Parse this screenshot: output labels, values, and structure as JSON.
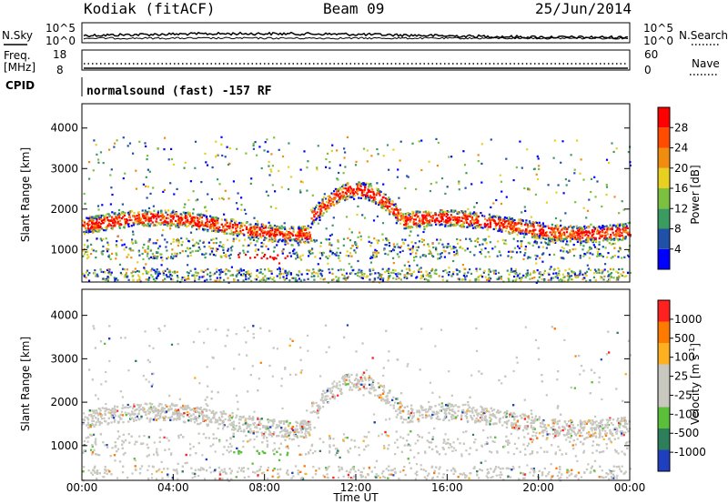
{
  "header": {
    "station": "Kodiak (fitACF)",
    "beam": "Beam 09",
    "date": "25/Jun/2014"
  },
  "top_panels": {
    "noise": {
      "left_label": "N.Sky",
      "right_label": "N.Search",
      "left_ticks": [
        "10^5",
        "10^0"
      ],
      "right_ticks": [
        "10^5",
        "10^0"
      ]
    },
    "freq": {
      "left_label_1": "Freq.",
      "left_label_2": "[MHz]",
      "left_ticks": [
        "18",
        "8"
      ],
      "right_label": "Nave",
      "right_ticks": [
        "60",
        "0"
      ]
    },
    "cpid": {
      "label": "CPID",
      "text": "normalsound (fast) -157 RF"
    }
  },
  "chart_data": [
    {
      "type": "heatmap",
      "name": "power",
      "ylabel": "Slant Range [km]",
      "yticks": [
        "1000",
        "2000",
        "3000",
        "4000"
      ],
      "colorbar_label": "Power [dB]",
      "colorbar_ticks": [
        "4",
        "8",
        "12",
        "16",
        "20",
        "24",
        "28"
      ],
      "colorscale": [
        "#0000ff",
        "#2050a8",
        "#3a9a60",
        "#7cc040",
        "#e8d020",
        "#f08c10",
        "#ff4c00",
        "#ff0000"
      ],
      "ylim": [
        200,
        4600
      ],
      "xlim": [
        0,
        24
      ]
    },
    {
      "type": "heatmap",
      "name": "velocity",
      "ylabel": "Slant Range [km]",
      "yticks": [
        "1000",
        "2000",
        "3000",
        "4000"
      ],
      "xlabel": "Time UT",
      "xticks": [
        "00:00",
        "04:00",
        "08:00",
        "12:00",
        "16:00",
        "20:00",
        "00:00"
      ],
      "colorbar_label": "Velocity [m s",
      "colorbar_label_sup": "-1",
      "colorbar_label_end": "]",
      "colorbar_ticks": [
        "1000",
        "500",
        "100",
        "25",
        "-25",
        "-100",
        "-500",
        "-1000"
      ],
      "colorscale": [
        "#1f3fbf",
        "#2c7f5a",
        "#5cbf3a",
        "#c8c8c0",
        "#c8c8c0",
        "#ffb020",
        "#ff7a00",
        "#ff2020"
      ],
      "ylim": [
        200,
        4600
      ],
      "xlim": [
        0,
        24
      ]
    }
  ]
}
